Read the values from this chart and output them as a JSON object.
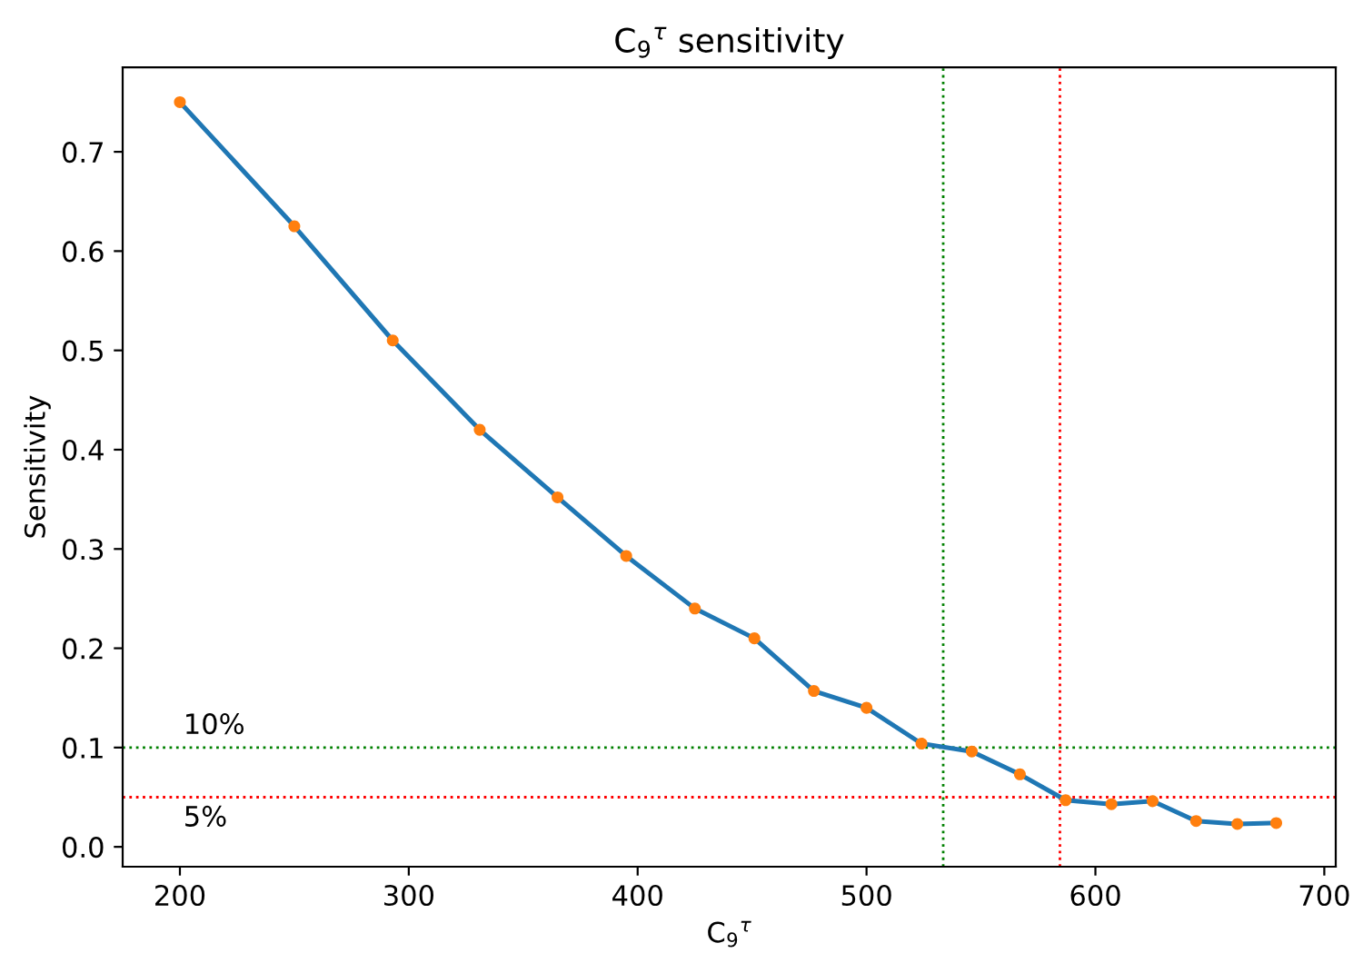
{
  "chart_data": {
    "type": "line",
    "title": "C$_{9}$$^{τ}$ sensitivity",
    "xlabel": "C$_{9}$$^{τ}$",
    "ylabel": "Sensitivity",
    "x": [
      200,
      250,
      293,
      331,
      365,
      395,
      425,
      451,
      477,
      500,
      524,
      546,
      567,
      587,
      607,
      625,
      644,
      662,
      679
    ],
    "series": [
      {
        "color": "#1f77b4",
        "marker": "none",
        "values": [
          0.75,
          0.625,
          0.51,
          0.42,
          0.352,
          0.293,
          0.24,
          0.21,
          0.157,
          0.14,
          0.104,
          0.096,
          0.073,
          0.047,
          0.043,
          0.046,
          0.026,
          0.023,
          0.024
        ]
      },
      {
        "type": "scatter",
        "color": "#ff7f0e",
        "marker": "circle",
        "values": [
          0.75,
          0.625,
          0.51,
          0.42,
          0.352,
          0.293,
          0.24,
          0.21,
          0.157,
          0.14,
          0.104,
          0.096,
          0.073,
          0.047,
          0.043,
          0.046,
          0.026,
          0.023,
          0.024
        ]
      }
    ],
    "xlim": [
      175,
      705
    ],
    "ylim": [
      -0.02,
      0.785
    ],
    "xticks": [
      200,
      300,
      400,
      500,
      600,
      700
    ],
    "yticks": [
      {
        "value": 0,
        "label": "0.0"
      },
      0.1,
      0.2,
      0.3,
      0.4,
      0.5,
      0.6,
      0.7
    ],
    "ref_lines": [
      {
        "axis": "y",
        "value": 0.1,
        "label": "10%",
        "color": "#008000",
        "line_style": "dotted"
      },
      {
        "axis": "y",
        "value": 0.05,
        "label": "5%",
        "color": "#ff0000",
        "line_style": "dotted"
      },
      {
        "axis": "x",
        "value": 533.5,
        "color": "#008000",
        "line_style": "dotted"
      },
      {
        "axis": "x",
        "value": 584.5,
        "color": "#ff0000",
        "line_style": "dotted"
      }
    ],
    "grid": false,
    "legend": false
  }
}
